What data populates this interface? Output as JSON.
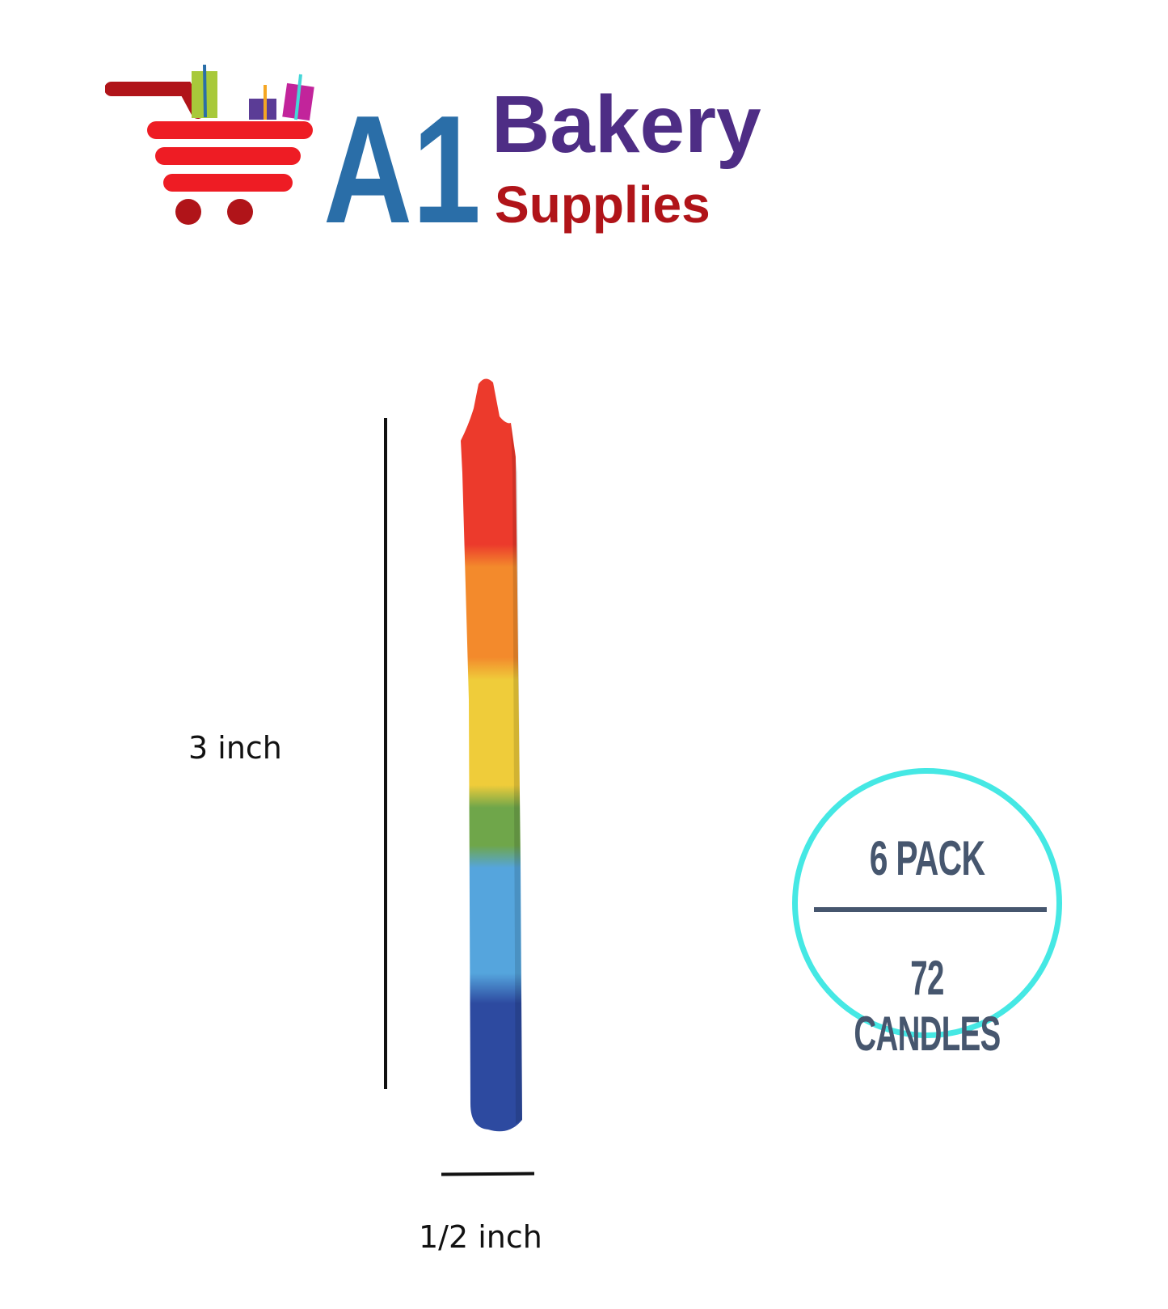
{
  "logo": {
    "brand_mark": "A1",
    "brand_word": "Bakery",
    "brand_sub": "Supplies",
    "colors": {
      "a1": "#2a6ea8",
      "bakery": "#4e2d85",
      "supplies": "#b01419",
      "cart": "#ee1c24"
    }
  },
  "dimensions": {
    "height_label": "3 inch",
    "width_label": "1/2 inch"
  },
  "product": {
    "name": "rainbow-candle",
    "stripe_colors": [
      "#ec3a2c",
      "#f38a2c",
      "#efcc3a",
      "#6fa64a",
      "#55a5dd",
      "#2d4aa0"
    ]
  },
  "badge": {
    "pack_text": "6 PACK",
    "count_text": "72 CANDLES",
    "ring_color": "#45e8e4",
    "text_color": "#46566e"
  }
}
